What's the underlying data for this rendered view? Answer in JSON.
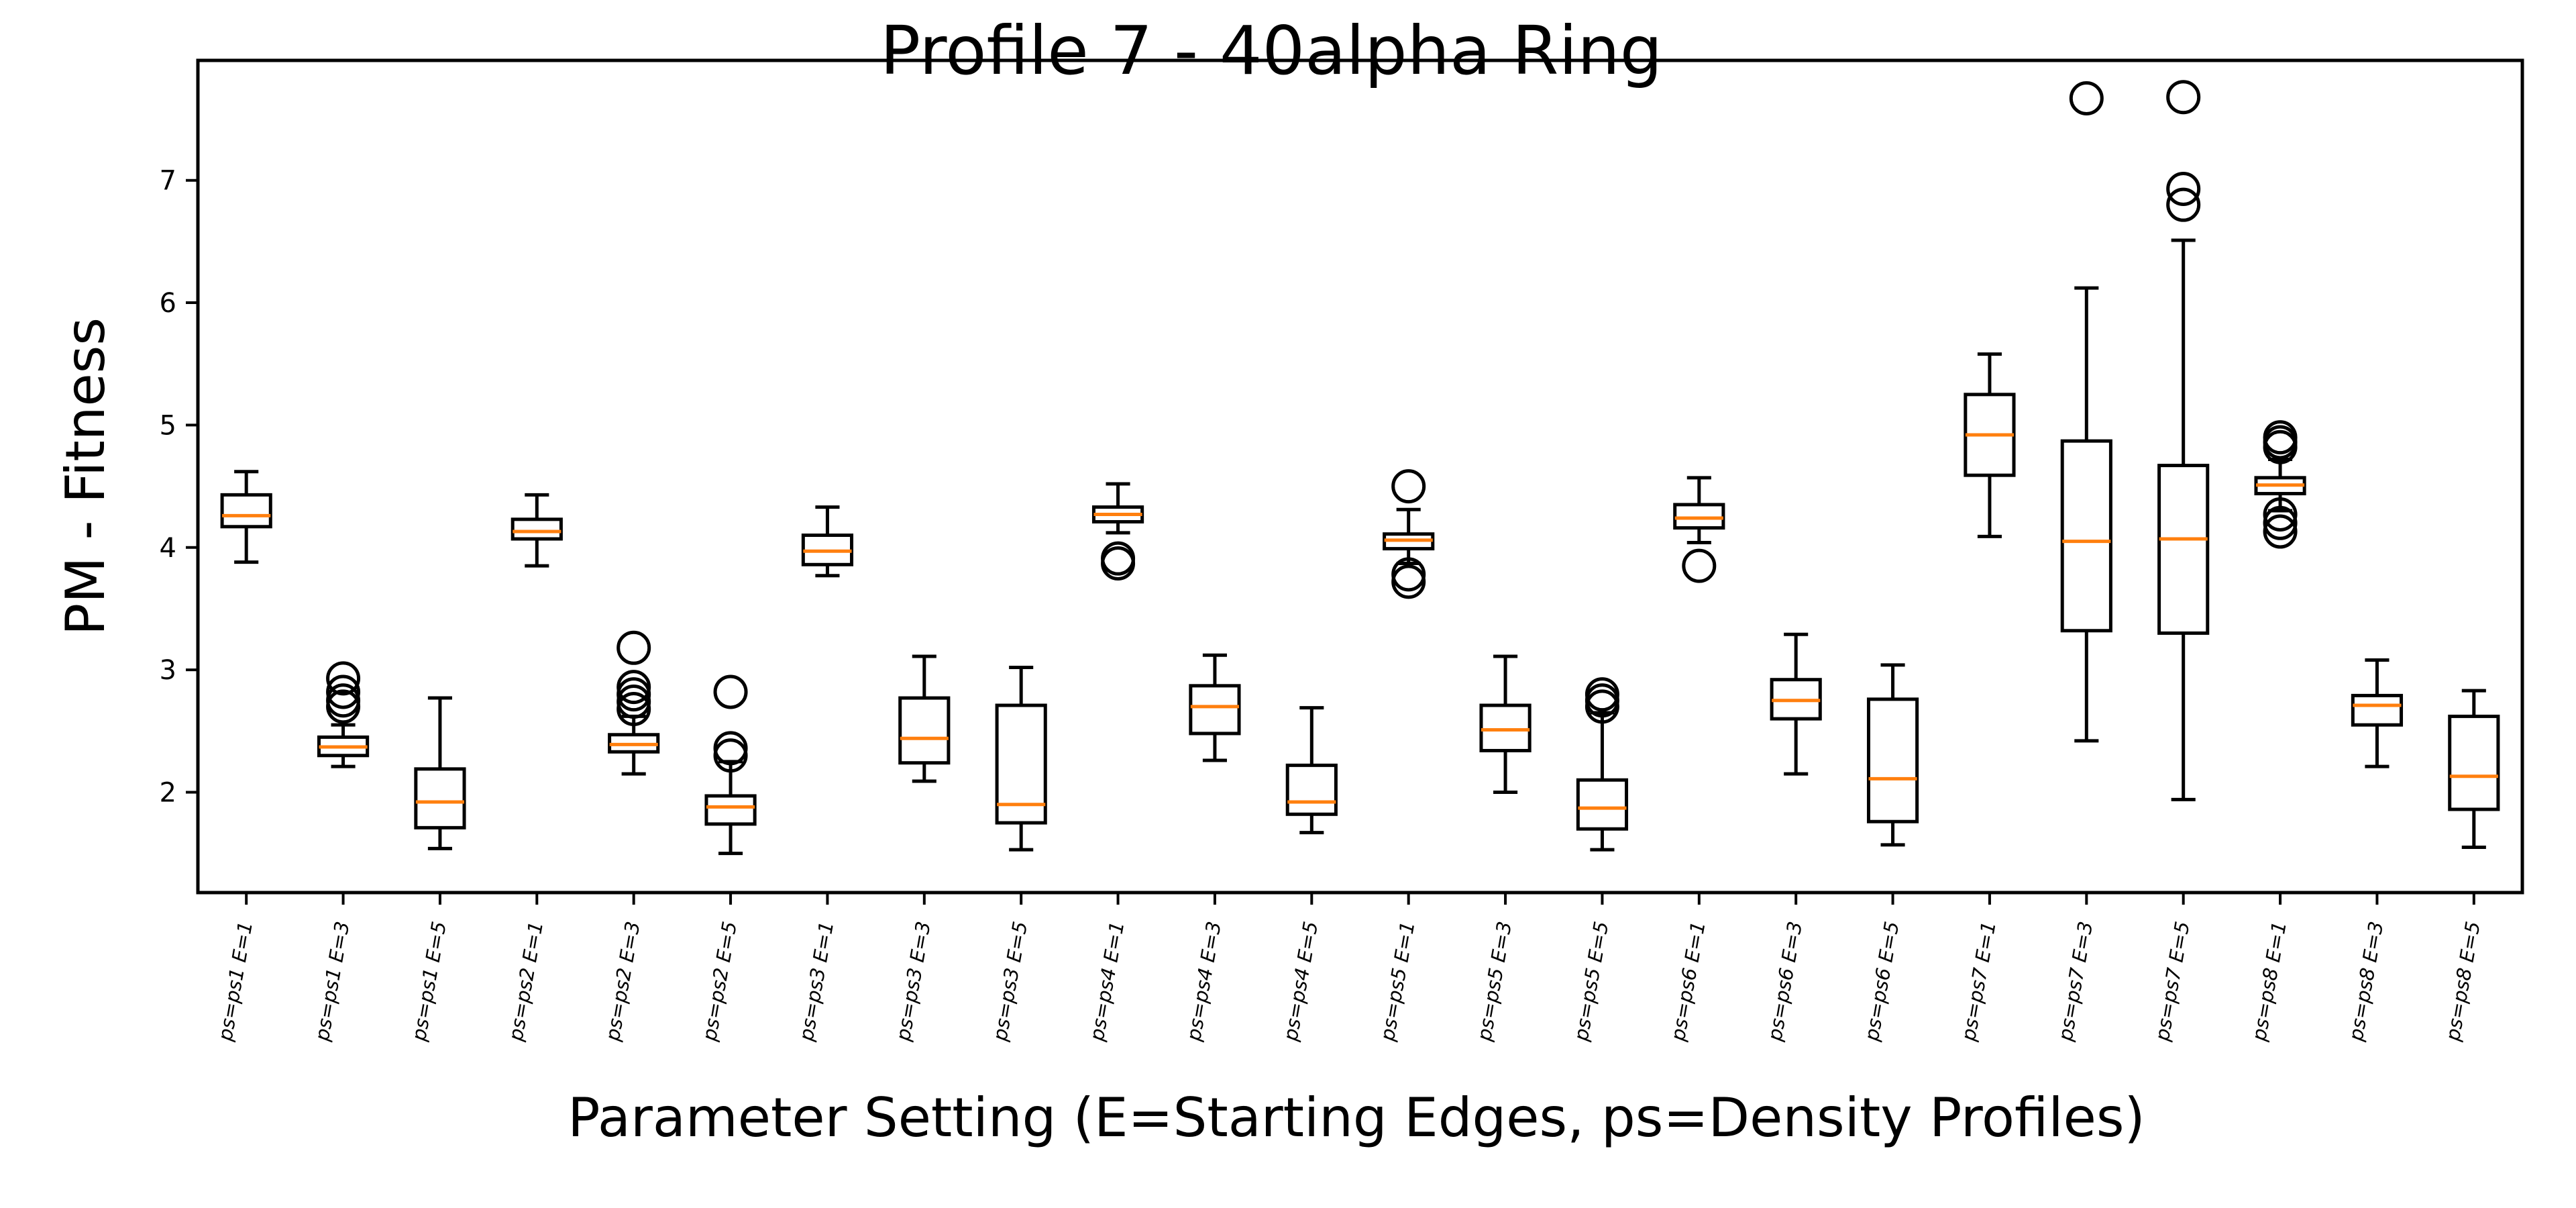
{
  "chart_data": {
    "type": "box",
    "title": "Profile 7 - 40alpha Ring",
    "xlabel": "Parameter Setting (E=Starting Edges, ps=Density Profiles)",
    "ylabel": "PM - Fitness",
    "ylim": [
      1.18,
      7.98
    ],
    "yticks": [
      2,
      3,
      4,
      5,
      6,
      7
    ],
    "grid": false,
    "median_color": "#ff7f0e",
    "box_color": "#000000",
    "categories": [
      "ps=ps1 E=1",
      "ps=ps1 E=3",
      "ps=ps1 E=5",
      "ps=ps2 E=1",
      "ps=ps2 E=3",
      "ps=ps2 E=5",
      "ps=ps3 E=1",
      "ps=ps3 E=3",
      "ps=ps3 E=5",
      "ps=ps4 E=1",
      "ps=ps4 E=3",
      "ps=ps4 E=5",
      "ps=ps5 E=1",
      "ps=ps5 E=3",
      "ps=ps5 E=5",
      "ps=ps6 E=1",
      "ps=ps6 E=3",
      "ps=ps6 E=5",
      "ps=ps7 E=1",
      "ps=ps7 E=3",
      "ps=ps7 E=5",
      "ps=ps8 E=1",
      "ps=ps8 E=3",
      "ps=ps8 E=5"
    ],
    "boxes": [
      {
        "whislo": 3.88,
        "q1": 4.17,
        "med": 4.26,
        "q3": 4.43,
        "whishi": 4.62,
        "fliers": []
      },
      {
        "whislo": 2.21,
        "q1": 2.3,
        "med": 2.37,
        "q3": 2.45,
        "whishi": 2.55,
        "fliers": [
          2.7,
          2.75,
          2.82,
          2.93
        ]
      },
      {
        "whislo": 1.54,
        "q1": 1.71,
        "med": 1.92,
        "q3": 2.19,
        "whishi": 2.77,
        "fliers": []
      },
      {
        "whislo": 3.85,
        "q1": 4.07,
        "med": 4.13,
        "q3": 4.23,
        "whishi": 4.43,
        "fliers": []
      },
      {
        "whislo": 2.15,
        "q1": 2.33,
        "med": 2.39,
        "q3": 2.47,
        "whishi": 2.62,
        "fliers": [
          2.68,
          2.74,
          2.8,
          2.86,
          3.18
        ]
      },
      {
        "whislo": 1.5,
        "q1": 1.74,
        "med": 1.88,
        "q3": 1.97,
        "whishi": 2.25,
        "fliers": [
          2.3,
          2.36,
          2.82
        ]
      },
      {
        "whislo": 3.77,
        "q1": 3.86,
        "med": 3.97,
        "q3": 4.1,
        "whishi": 4.33,
        "fliers": []
      },
      {
        "whislo": 2.09,
        "q1": 2.24,
        "med": 2.44,
        "q3": 2.77,
        "whishi": 3.11,
        "fliers": []
      },
      {
        "whislo": 1.53,
        "q1": 1.75,
        "med": 1.9,
        "q3": 2.71,
        "whishi": 3.02,
        "fliers": []
      },
      {
        "whislo": 4.12,
        "q1": 4.21,
        "med": 4.27,
        "q3": 4.33,
        "whishi": 4.52,
        "fliers": [
          3.87,
          3.91
        ]
      },
      {
        "whislo": 2.26,
        "q1": 2.48,
        "med": 2.7,
        "q3": 2.87,
        "whishi": 3.12,
        "fliers": []
      },
      {
        "whislo": 1.67,
        "q1": 1.82,
        "med": 1.92,
        "q3": 2.22,
        "whishi": 2.69,
        "fliers": []
      },
      {
        "whislo": 3.87,
        "q1": 3.99,
        "med": 4.06,
        "q3": 4.11,
        "whishi": 4.31,
        "fliers": [
          3.72,
          3.78,
          4.5
        ]
      },
      {
        "whislo": 2.0,
        "q1": 2.34,
        "med": 2.51,
        "q3": 2.71,
        "whishi": 3.11,
        "fliers": []
      },
      {
        "whislo": 1.53,
        "q1": 1.7,
        "med": 1.87,
        "q3": 2.1,
        "whishi": 2.65,
        "fliers": [
          2.7,
          2.75,
          2.8
        ]
      },
      {
        "whislo": 4.04,
        "q1": 4.16,
        "med": 4.24,
        "q3": 4.35,
        "whishi": 4.57,
        "fliers": [
          3.85
        ]
      },
      {
        "whislo": 2.15,
        "q1": 2.6,
        "med": 2.75,
        "q3": 2.92,
        "whishi": 3.29,
        "fliers": []
      },
      {
        "whislo": 1.57,
        "q1": 1.76,
        "med": 2.11,
        "q3": 2.76,
        "whishi": 3.04,
        "fliers": []
      },
      {
        "whislo": 4.09,
        "q1": 4.59,
        "med": 4.92,
        "q3": 5.25,
        "whishi": 5.58,
        "fliers": []
      },
      {
        "whislo": 2.42,
        "q1": 3.32,
        "med": 4.05,
        "q3": 4.87,
        "whishi": 6.12,
        "fliers": [
          7.67
        ]
      },
      {
        "whislo": 1.94,
        "q1": 3.3,
        "med": 4.07,
        "q3": 4.67,
        "whishi": 6.51,
        "fliers": [
          6.8,
          6.93,
          7.68
        ]
      },
      {
        "whislo": 4.3,
        "q1": 4.44,
        "med": 4.51,
        "q3": 4.57,
        "whishi": 4.72,
        "fliers": [
          4.13,
          4.2,
          4.27,
          4.82,
          4.86,
          4.9
        ]
      },
      {
        "whislo": 2.21,
        "q1": 2.55,
        "med": 2.71,
        "q3": 2.79,
        "whishi": 3.08,
        "fliers": []
      },
      {
        "whislo": 1.55,
        "q1": 1.86,
        "med": 2.13,
        "q3": 2.62,
        "whishi": 2.83,
        "fliers": []
      }
    ]
  }
}
